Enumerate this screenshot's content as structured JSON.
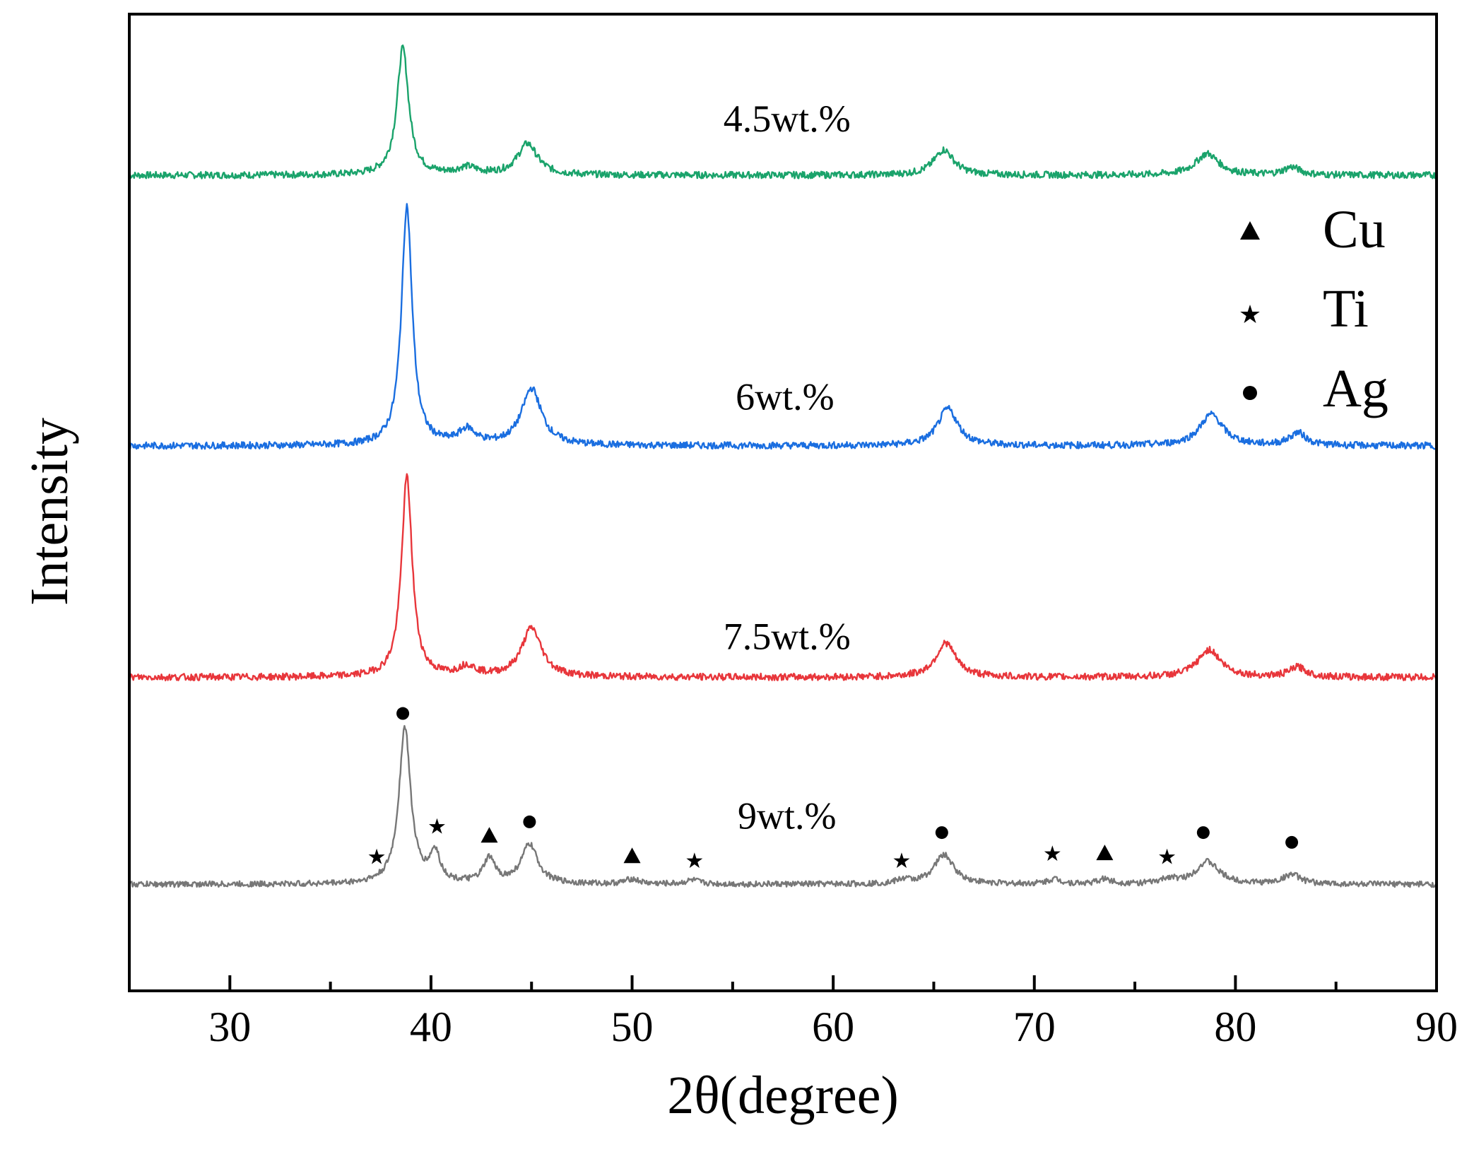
{
  "chart_data": {
    "type": "line",
    "title": "",
    "xlabel": "2θ(degree)",
    "ylabel": "Intensity",
    "xlim": [
      25,
      90
    ],
    "ylim": [
      0,
      100
    ],
    "xticks": [
      30,
      40,
      50,
      60,
      70,
      80,
      90
    ],
    "yticks_shown": false,
    "grid": false,
    "legend": {
      "position": "right",
      "entries": [
        {
          "label": "Cu",
          "marker": "triangle"
        },
        {
          "label": "Ti",
          "marker": "star"
        },
        {
          "label": "Ag",
          "marker": "circle"
        }
      ]
    },
    "series": [
      {
        "name": "4.5wt.%",
        "color": "#1aa36b",
        "baseline": 83.5,
        "noise": 0.35,
        "peaks": [
          {
            "x": 38.6,
            "h": 13.0,
            "w": 0.35
          },
          {
            "x": 41.8,
            "h": 0.7,
            "w": 0.6
          },
          {
            "x": 44.8,
            "h": 3.2,
            "w": 0.6
          },
          {
            "x": 65.5,
            "h": 2.6,
            "w": 0.6
          },
          {
            "x": 78.6,
            "h": 2.2,
            "w": 0.7
          },
          {
            "x": 82.8,
            "h": 0.8,
            "w": 0.5
          }
        ]
      },
      {
        "name": "6wt.%",
        "color": "#1a6ee0",
        "baseline": 55.8,
        "noise": 0.35,
        "peaks": [
          {
            "x": 38.8,
            "h": 24.5,
            "w": 0.32
          },
          {
            "x": 41.8,
            "h": 1.5,
            "w": 0.5
          },
          {
            "x": 45.0,
            "h": 5.8,
            "w": 0.6
          },
          {
            "x": 65.7,
            "h": 3.8,
            "w": 0.6
          },
          {
            "x": 78.8,
            "h": 3.2,
            "w": 0.7
          },
          {
            "x": 83.1,
            "h": 1.3,
            "w": 0.5
          }
        ]
      },
      {
        "name": "7.5wt.%",
        "color": "#e8363b",
        "baseline": 32.1,
        "noise": 0.35,
        "peaks": [
          {
            "x": 38.8,
            "h": 20.5,
            "w": 0.32
          },
          {
            "x": 41.8,
            "h": 1.0,
            "w": 0.5
          },
          {
            "x": 45.0,
            "h": 5.0,
            "w": 0.6
          },
          {
            "x": 65.6,
            "h": 3.5,
            "w": 0.6
          },
          {
            "x": 78.7,
            "h": 2.8,
            "w": 0.7
          },
          {
            "x": 83.1,
            "h": 1.0,
            "w": 0.5
          }
        ]
      },
      {
        "name": "9wt.%",
        "color": "#777777",
        "baseline": 10.9,
        "noise": 0.3,
        "peaks": [
          {
            "x": 38.7,
            "h": 16.0,
            "w": 0.35
          },
          {
            "x": 40.2,
            "h": 3.0,
            "w": 0.3
          },
          {
            "x": 42.9,
            "h": 2.5,
            "w": 0.35
          },
          {
            "x": 44.9,
            "h": 4.0,
            "w": 0.5
          },
          {
            "x": 50.0,
            "h": 0.5,
            "w": 0.4
          },
          {
            "x": 53.0,
            "h": 0.4,
            "w": 0.4
          },
          {
            "x": 63.5,
            "h": 0.4,
            "w": 0.4
          },
          {
            "x": 65.5,
            "h": 3.0,
            "w": 0.6
          },
          {
            "x": 71.0,
            "h": 0.5,
            "w": 0.4
          },
          {
            "x": 73.5,
            "h": 0.5,
            "w": 0.4
          },
          {
            "x": 76.7,
            "h": 0.5,
            "w": 0.4
          },
          {
            "x": 78.6,
            "h": 2.3,
            "w": 0.7
          },
          {
            "x": 82.8,
            "h": 1.0,
            "w": 0.5
          }
        ]
      }
    ],
    "phase_markers": [
      {
        "phase": "Ag",
        "marker": "circle",
        "x": 38.6,
        "y": 28.4
      },
      {
        "phase": "Ti",
        "marker": "star",
        "x": 37.3,
        "y": 13.8
      },
      {
        "phase": "Ti",
        "marker": "star",
        "x": 40.3,
        "y": 16.9
      },
      {
        "phase": "Cu",
        "marker": "triangle",
        "x": 42.9,
        "y": 15.9
      },
      {
        "phase": "Ag",
        "marker": "circle",
        "x": 44.9,
        "y": 17.3
      },
      {
        "phase": "Cu",
        "marker": "triangle",
        "x": 50.0,
        "y": 13.8
      },
      {
        "phase": "Ti",
        "marker": "star",
        "x": 53.1,
        "y": 13.4
      },
      {
        "phase": "Ti",
        "marker": "star",
        "x": 63.4,
        "y": 13.4
      },
      {
        "phase": "Ag",
        "marker": "circle",
        "x": 65.4,
        "y": 16.2
      },
      {
        "phase": "Ti",
        "marker": "star",
        "x": 70.9,
        "y": 14.1
      },
      {
        "phase": "Cu",
        "marker": "triangle",
        "x": 73.5,
        "y": 14.1
      },
      {
        "phase": "Ti",
        "marker": "star",
        "x": 76.6,
        "y": 13.8
      },
      {
        "phase": "Ag",
        "marker": "circle",
        "x": 78.4,
        "y": 16.2
      },
      {
        "phase": "Ag",
        "marker": "circle",
        "x": 82.8,
        "y": 15.2
      }
    ]
  },
  "series_labels": [
    {
      "text": "4.5wt.%",
      "x": 57.7,
      "y": 88.0
    },
    {
      "text": "6wt.%",
      "x": 57.6,
      "y": 59.5
    },
    {
      "text": "7.5wt.%",
      "x": 57.7,
      "y": 35.0
    },
    {
      "text": "9wt.%",
      "x": 57.7,
      "y": 16.6
    }
  ]
}
